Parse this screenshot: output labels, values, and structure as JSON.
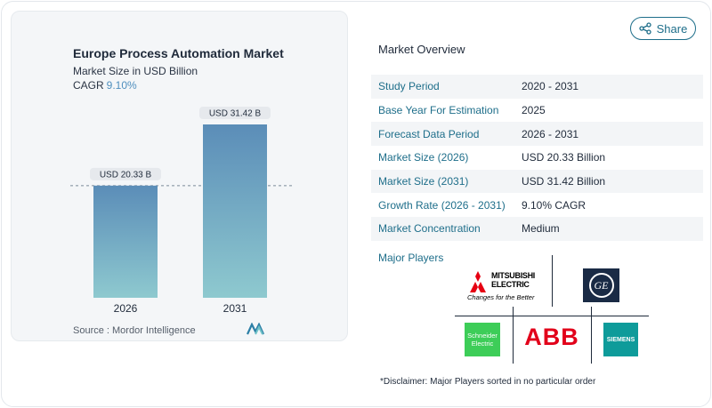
{
  "share": {
    "label": "Share",
    "icon": "share-icon"
  },
  "chart_card": {
    "title": "Europe Process Automation Market",
    "subtitle": "Market Size in USD Billion",
    "cagr_label": "CAGR",
    "cagr_value": "9.10%",
    "source": "Source :  Mordor Intelligence"
  },
  "chart_data": {
    "type": "bar",
    "categories": [
      "2026",
      "2031"
    ],
    "values": [
      20.33,
      31.42
    ],
    "data_labels": [
      "USD 20.33 B",
      "USD 31.42 B"
    ],
    "reference_line": 20.33,
    "colors": {
      "bar_top": "#5b8db8",
      "bar_bottom": "#8ec9cf"
    }
  },
  "overview": {
    "title": "Market Overview",
    "rows": [
      {
        "label": "Study Period",
        "value": "2020 - 2031"
      },
      {
        "label": "Base Year For Estimation",
        "value": "2025"
      },
      {
        "label": "Forecast Data Period",
        "value": "2026 - 2031"
      },
      {
        "label": "Market Size (2026)",
        "value": "USD 20.33 Billion"
      },
      {
        "label": "Market Size (2031)",
        "value": "USD 31.42 Billion"
      },
      {
        "label": "Growth Rate (2026 - 2031)",
        "value": "9.10% CAGR"
      },
      {
        "label": "Market Concentration",
        "value": "Medium"
      }
    ]
  },
  "players": {
    "title": "Major Players",
    "logos": {
      "mitsubishi": {
        "line1": "MITSUBISHI",
        "line2": "ELECTRIC",
        "tagline": "Changes for the Better"
      },
      "ge": {
        "text": "GE"
      },
      "schneider": {
        "line1": "Schneider",
        "line2": "Electric"
      },
      "abb": {
        "text": "ABB"
      },
      "siemens": {
        "text": "SIEMENS"
      }
    }
  },
  "disclaimer": "*Disclaimer: Major Players sorted in no particular order"
}
